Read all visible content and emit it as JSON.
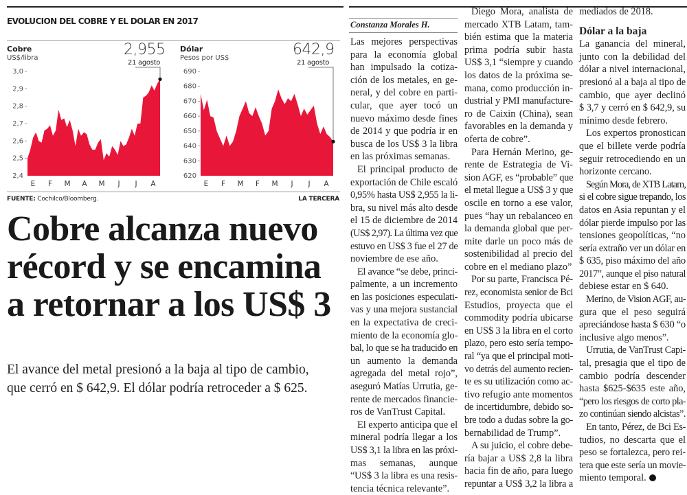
{
  "graphic": {
    "title": "EVOLUCION DEL COBRE Y EL DOLAR EN 2017",
    "source_label": "FUENTE:",
    "source": "Cochilco/Bloomberg.",
    "credit": "LA TERCERA"
  },
  "chart_data": [
    {
      "type": "area",
      "title": "Cobre",
      "ylabel": "US$/libra",
      "ylim": [
        2.4,
        3.0
      ],
      "yticks": [
        "3,0",
        "2,9",
        "2,8",
        "2,7",
        "2,6",
        "2,5",
        "2,4"
      ],
      "ytick_values": [
        3.0,
        2.9,
        2.8,
        2.7,
        2.6,
        2.5,
        2.4
      ],
      "xticks": [
        "E",
        "F",
        "M",
        "A",
        "M",
        "J",
        "J",
        "A"
      ],
      "annotation": {
        "value": "2,955",
        "date": "21 agosto"
      },
      "color": "#e8173a",
      "values": [
        2.5,
        2.55,
        2.62,
        2.65,
        2.6,
        2.59,
        2.66,
        2.67,
        2.69,
        2.63,
        2.66,
        2.78,
        2.72,
        2.73,
        2.68,
        2.72,
        2.66,
        2.57,
        2.67,
        2.63,
        2.65,
        2.64,
        2.58,
        2.55,
        2.55,
        2.59,
        2.61,
        2.49,
        2.53,
        2.51,
        2.57,
        2.55,
        2.52,
        2.6,
        2.57,
        2.58,
        2.62,
        2.67,
        2.63,
        2.7,
        2.7,
        2.85,
        2.86,
        2.88,
        2.92,
        2.89,
        2.93,
        2.955
      ]
    },
    {
      "type": "area",
      "title": "Dólar",
      "ylabel": "Pesos por US$",
      "ylim": [
        620,
        690
      ],
      "yticks": [
        "690",
        "680",
        "670",
        "660",
        "650",
        "640",
        "630",
        "620"
      ],
      "ytick_values": [
        690,
        680,
        670,
        660,
        650,
        640,
        630,
        620
      ],
      "xticks": [
        "E",
        "F",
        "M",
        "F",
        "M",
        "J",
        "J",
        "A"
      ],
      "annotation": {
        "value": "642,9",
        "date": "21 agosto"
      },
      "color": "#e8173a",
      "values": [
        675,
        664,
        671,
        660,
        659,
        650,
        645,
        640,
        647,
        640,
        643,
        650,
        660,
        665,
        670,
        662,
        660,
        666,
        660,
        655,
        647,
        650,
        665,
        670,
        678,
        672,
        668,
        672,
        670,
        675,
        668,
        660,
        665,
        661,
        664,
        667,
        655,
        648,
        653,
        648,
        646,
        642.9
      ]
    }
  ],
  "headline": [
    "Cobre alcanza nuevo",
    "récord y se encamina",
    "a retornar a los US$ 3"
  ],
  "deck": [
    "El avance del metal presionó a la baja al tipo de cambio,",
    "que cerró en $ 642,9. El dólar podría retroceder a $ 625."
  ],
  "byline": "Constanza Morales H.",
  "columns": [
    [
      {
        "p": [
          "Las mejores perspectivas",
          "para la economía global",
          "han impulsado la cotiza-",
          "ción de los metales, en ge-",
          "neral, y del cobre en parti-",
          "cular, que ayer tocó un",
          "nuevo máximo desde fines",
          "de 2014 y que podría ir en",
          "busca de los US$ 3 la libra",
          "en las próximas semanas."
        ],
        "noindent": true
      },
      {
        "p": [
          "El principal producto de",
          "exportación de Chile escaló",
          "0,95% hasta US$ 2,955 la li-",
          "bra, su nivel más alto desde",
          "el 15 de diciembre de 2014",
          "(US$ 2,97). La última vez que",
          "estuvo en US$ 3 fue el 27 de",
          "noviembre de ese año."
        ]
      },
      {
        "p": [
          "El avance “se debe, princi-",
          "palmente, a un incremento",
          "en las posiciones especulati-",
          "vas y una mejora sustancial",
          "en la expectativa de creci-",
          "miento de la economía glo-",
          "bal, lo que se ha traducido en",
          "un aumento la demanda",
          "agregada del metal rojo”,",
          "aseguró Matías Urrutia, ge-",
          "rente de mercados financie-",
          "ros de VanTrust Capital."
        ]
      },
      {
        "p": [
          "El experto anticipa que el",
          "mineral podría llegar a los",
          "US$ 3,1 la libra en las próxi-",
          "mas semanas, aunque",
          "“US$ 3 la libra es una resis-",
          "tencia técnica relevante”."
        ]
      }
    ],
    [
      {
        "p": [
          "Diego Mora, analista de",
          "mercado XTB Latam, tam-",
          "bién estima que la materia",
          "prima podría subir hasta",
          "US$ 3,1 “siempre y cuando",
          "los datos de la próxima se-",
          "mana, como producción in-",
          "dustrial y PMI manufacture-",
          "ro de Caixin (China), sean",
          "favorables en la demanda y",
          "oferta de cobre”."
        ]
      },
      {
        "p": [
          "Para Hernán Merino, ge-",
          "rente de Estrategia de Vi-",
          "sion AGF, es “probable” que",
          "el metal llegue a US$ 3 y que",
          "oscile en torno a ese valor,",
          "pues “hay un rebalanceo en",
          "la demanda global que per-",
          "mite darle un poco más de",
          "sostenibilidad al precio del",
          "cobre en el mediano plazo”"
        ]
      },
      {
        "p": [
          "Por su parte, Francisca Pé-",
          "rez, economista senior de Bci",
          "Estudios, proyecta que el",
          "commodity podría ubicarse",
          "en US$ 3 la libra en el corto",
          "plazo, pero esto sería tempo-",
          "ral “ya que el principal moti-",
          "vo detrás del aumento recien-",
          "te es su utilización como ac-",
          "tivo refugio ante momentos",
          "de incertidumbre, debido so-",
          "bre todo a dudas sobre la go-",
          "bernabilidad de Trump”."
        ]
      },
      {
        "p": [
          "A su juicio, el cobre debe-",
          "ría bajar a US$ 2,8 la libra",
          "hacia fin de año, para luego",
          "repuntar a US$ 3,2 la libra a"
        ],
        "open": true
      }
    ],
    [
      {
        "p": [
          "mediados de 2018."
        ],
        "noindent": true
      },
      {
        "sub": "Dólar a la baja"
      },
      {
        "p": [
          "La ganancia del mineral,",
          "junto con la debilidad del",
          "dólar a nivel internacional,",
          "presionó al a baja al tipo de",
          "cambio, que ayer declinó",
          "$ 3,7 y cerró en $ 642,9, su",
          "mínimo desde febrero."
        ],
        "noindent": true
      },
      {
        "p": [
          "Los expertos pronostican",
          "que el billete verde podría",
          "seguir retrocediendo en un",
          "horizonte cercano."
        ]
      },
      {
        "p": [
          "Según Mora, de XTB Latam,",
          "si el cobre sigue trepando, los",
          "datos en Asia repuntan y el",
          "dólar pierde impulso por las",
          "tensiones geopolíticas, “no",
          "sería extraño ver un dólar en",
          "$ 635, piso máximo del año",
          "2017”, aunque el piso natural",
          "debiese estar en $ 640."
        ]
      },
      {
        "p": [
          "Merino, de Vision AGF, au-",
          "gura que el peso seguirá",
          "apreciándose hasta $ 630 “o",
          "inclusive algo menos”."
        ]
      },
      {
        "p": [
          "Urrutia, de VanTrust Capi-",
          "tal, presagia que el tipo de",
          "cambio podría descender",
          "hasta $625-$635 este año,",
          "“pero los riesgos de corto pla-",
          "zo continúan siendo alcistas”."
        ]
      },
      {
        "p": [
          "En tanto, Pérez, de Bci Es-",
          "tudios, no descarta que el",
          "peso se fortalezca, pero rei-",
          "tera que este sería un movie-",
          "miento temporal."
        ],
        "end": true
      }
    ]
  ]
}
